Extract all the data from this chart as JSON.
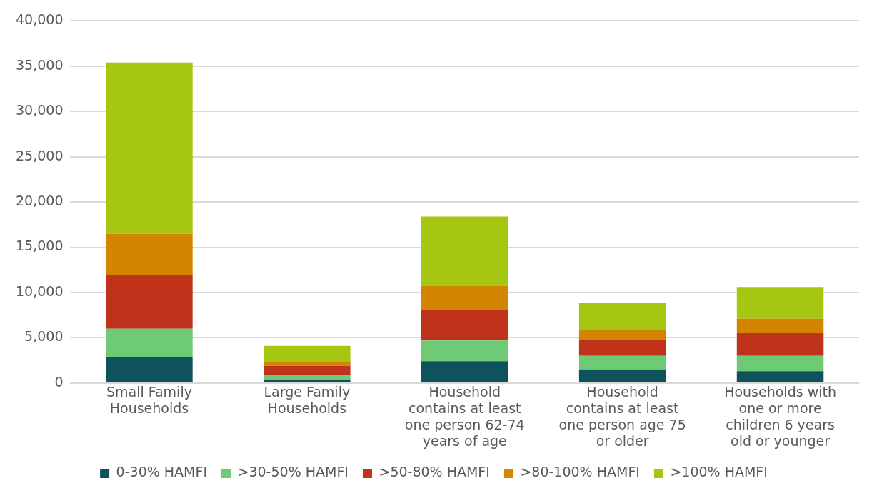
{
  "chart_data": {
    "type": "bar",
    "stacked": true,
    "categories": [
      "Small Family Households",
      "Large Family Households",
      "Household contains at least one person 62-74 years of age",
      "Household contains at least one person age 75 or older",
      "Households with one or more children 6 years old or younger"
    ],
    "series": [
      {
        "name": "0-30% HAMFI",
        "color": "#0e525c",
        "values": [
          2900,
          300,
          2400,
          1500,
          1300
        ]
      },
      {
        "name": ">30-50% HAMFI",
        "color": "#6fca76",
        "values": [
          3100,
          600,
          2300,
          1500,
          1700
        ]
      },
      {
        "name": ">50-80% HAMFI",
        "color": "#bf321b",
        "values": [
          5900,
          1000,
          3400,
          1800,
          2500
        ]
      },
      {
        "name": ">80-100% HAMFI",
        "color": "#d38500",
        "values": [
          4600,
          400,
          2600,
          1100,
          1600
        ]
      },
      {
        "name": ">100% HAMFI",
        "color": "#a6c712",
        "values": [
          18900,
          1800,
          7700,
          3000,
          3500
        ]
      }
    ],
    "ylim": [
      0,
      40000
    ],
    "yticks": [
      0,
      {
        "value": 5000,
        "label": "5,000"
      },
      {
        "value": 10000,
        "label": "10,000"
      },
      {
        "value": 15000,
        "label": "15,000"
      },
      {
        "value": 20000,
        "label": "20,000"
      },
      {
        "value": 25000,
        "label": "25,000"
      },
      {
        "value": 30000,
        "label": "30,000"
      },
      {
        "value": 35000,
        "label": "35,000"
      },
      {
        "value": 40000,
        "label": "40,000"
      }
    ],
    "grid": "y",
    "legend": "bottom"
  }
}
